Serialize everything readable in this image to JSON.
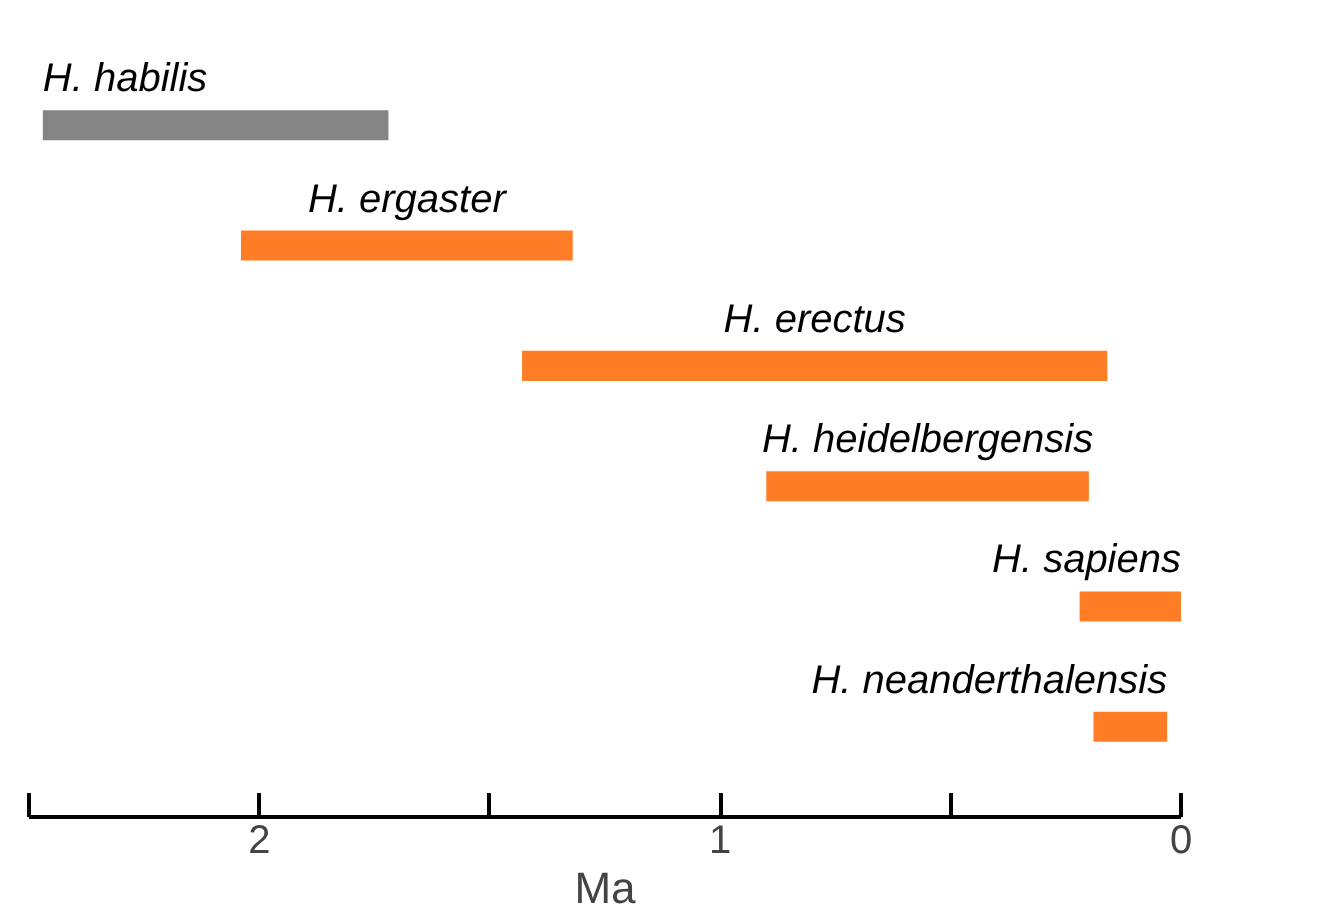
{
  "chart_data": {
    "type": "bar",
    "orientation": "horizontal",
    "xlabel": "Ma",
    "categories": [
      "H. habilis",
      "H. ergaster",
      "H. erectus",
      "H. heidelbergensis",
      "H. sapiens",
      "H. neanderthalensis"
    ],
    "base": [
      1.72,
      1.32,
      0.16,
      0.2,
      0,
      0.03
    ],
    "values": [
      0.75,
      0.72,
      1.27,
      0.7,
      0.22,
      0.16
    ],
    "colors": [
      "#6e6e6e",
      "#ff6600",
      "#ff6600",
      "#ff6600",
      "#ff6600",
      "#ff6600"
    ],
    "xlim": [
      2.5,
      0
    ],
    "xticks": [
      {
        "value": 2.5,
        "label": null
      },
      2,
      {
        "value": 1.5,
        "label": null
      },
      1,
      {
        "value": 0.5,
        "label": null
      },
      0
    ],
    "grid": false
  }
}
